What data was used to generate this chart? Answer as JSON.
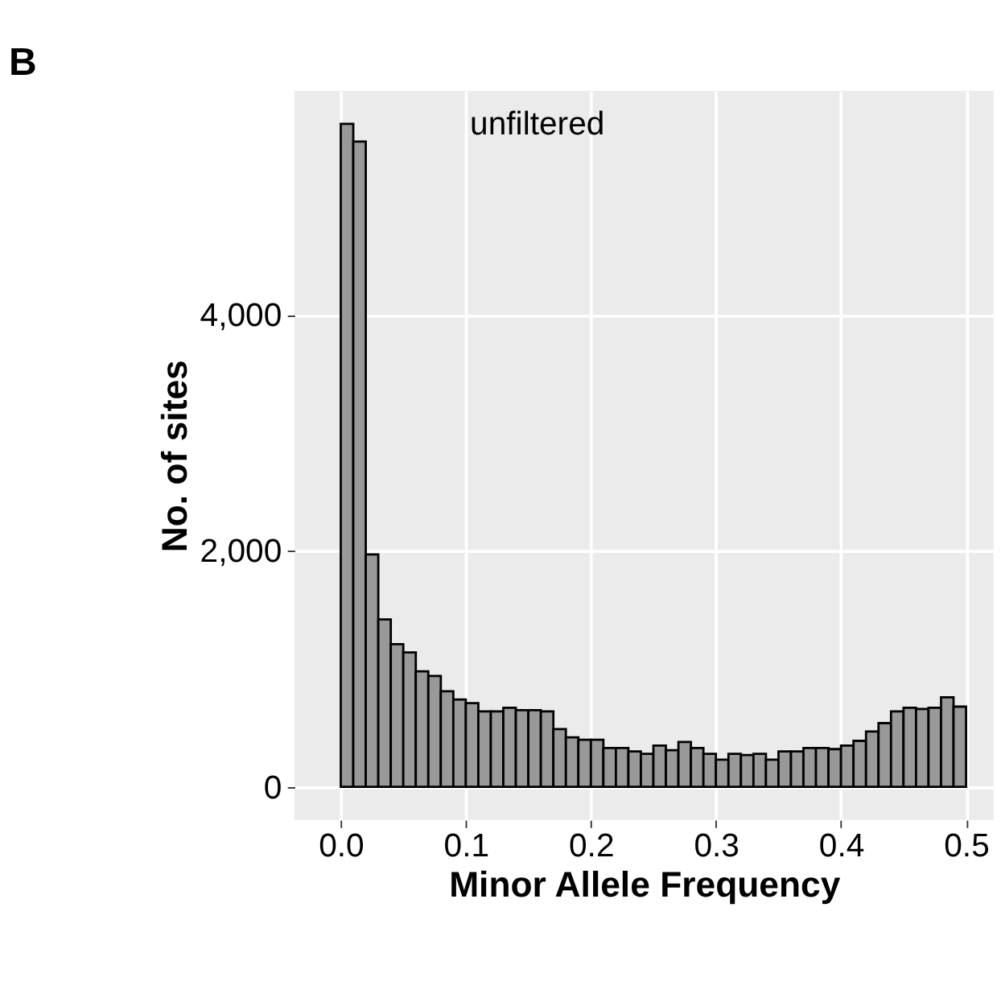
{
  "chart_data": {
    "type": "histogram",
    "title": "B",
    "xlabel": "Minor Allele Frequency",
    "ylabel": "No. of sites",
    "annotations": [
      "unfiltered"
    ],
    "bins": [
      0,
      0.01,
      0.02,
      0.03,
      0.04,
      0.05,
      0.06,
      0.07,
      0.08,
      0.09,
      0.1,
      0.11,
      0.12,
      0.13,
      0.14,
      0.15,
      0.16,
      0.17,
      0.18,
      0.19,
      0.2,
      0.21,
      0.22,
      0.23,
      0.24,
      0.25,
      0.26,
      0.27,
      0.28,
      0.29,
      0.3,
      0.31,
      0.32,
      0.33,
      0.34,
      0.35,
      0.36,
      0.37,
      0.38,
      0.39,
      0.4,
      0.41,
      0.42,
      0.43,
      0.44,
      0.45,
      0.46,
      0.47,
      0.48,
      0.49,
      0.5
    ],
    "values": [
      5620,
      5470,
      1970,
      1420,
      1210,
      1140,
      980,
      940,
      810,
      740,
      710,
      640,
      640,
      670,
      650,
      650,
      640,
      490,
      420,
      400,
      400,
      330,
      330,
      300,
      280,
      350,
      310,
      380,
      330,
      280,
      230,
      280,
      270,
      280,
      230,
      300,
      300,
      330,
      330,
      320,
      350,
      390,
      470,
      540,
      640,
      670,
      660,
      670,
      760,
      680
    ],
    "color": "#999999",
    "xlim": [
      -0.037,
      0.522
    ],
    "ylim": [
      -280,
      5900
    ],
    "xticks": [
      {
        "value": 0,
        "label": "0.0"
      },
      {
        "value": 0.1,
        "label": "0.1"
      },
      {
        "value": 0.2,
        "label": "0.2"
      },
      {
        "value": 0.3,
        "label": "0.3"
      },
      {
        "value": 0.4,
        "label": "0.4"
      },
      {
        "value": 0.5,
        "label": "0.5"
      }
    ],
    "yticks": [
      0,
      {
        "value": 2000,
        "label": "2,000"
      },
      {
        "value": 4000,
        "label": "4,000"
      }
    ],
    "grid": true
  }
}
